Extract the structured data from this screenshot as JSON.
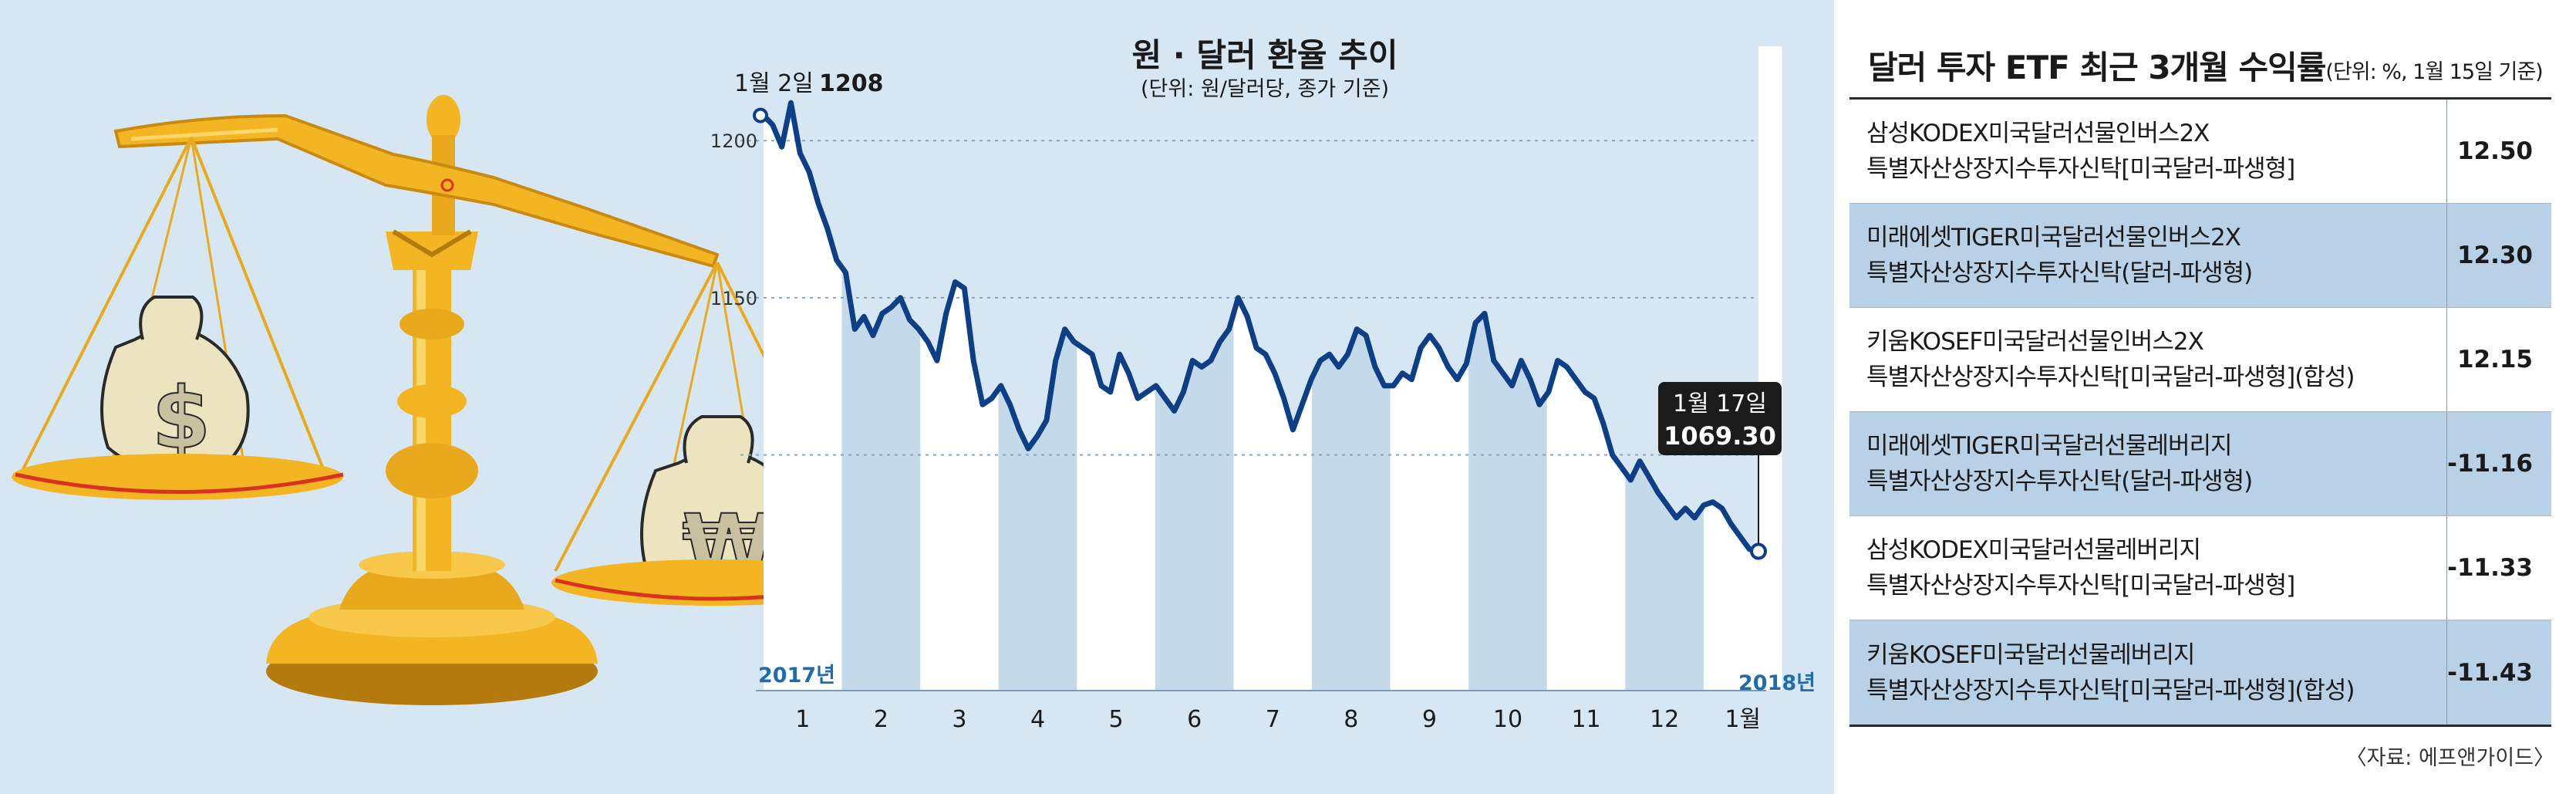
{
  "chart": {
    "title": "원 · 달러 환율 추이",
    "subtitle": "(단위: 원/달러당, 종가 기준)",
    "start_label_date": "1월 2일",
    "start_label_value": "1208",
    "end_label_date": "1월 17일",
    "end_label_value": "1069.30",
    "year_start": "2017년",
    "year_end": "2018년"
  },
  "chart_data": {
    "type": "line",
    "title": "원 · 달러 환율 추이",
    "subtitle": "(단위: 원/달러당, 종가 기준)",
    "ylabel": "",
    "xlabel": "",
    "x_ticks": [
      "1",
      "2",
      "3",
      "4",
      "5",
      "6",
      "7",
      "8",
      "9",
      "10",
      "11",
      "12",
      "1월"
    ],
    "y_ticks": [
      1200,
      1150
    ],
    "ylim": [
      1025,
      1230
    ],
    "grid": true,
    "series": [
      {
        "values": [
          1208,
          1205,
          1198,
          1212,
          1196,
          1190,
          1180,
          1172,
          1162,
          1158,
          1140,
          1144,
          1138,
          1145,
          1147,
          1150,
          1143,
          1140,
          1136,
          1130,
          1145,
          1155,
          1153,
          1130,
          1116,
          1118,
          1122,
          1116,
          1108,
          1102,
          1106,
          1111,
          1130,
          1140,
          1136,
          1134,
          1132,
          1122,
          1120,
          1132,
          1126,
          1118,
          1120,
          1122,
          1118,
          1114,
          1120,
          1130,
          1128,
          1130,
          1136,
          1140,
          1150,
          1144,
          1134,
          1132,
          1126,
          1118,
          1108,
          1116,
          1124,
          1130,
          1132,
          1128,
          1132,
          1140,
          1138,
          1128,
          1122,
          1122,
          1126,
          1124,
          1134,
          1138,
          1134,
          1128,
          1124,
          1129,
          1142,
          1145,
          1130,
          1126,
          1122,
          1130,
          1124,
          1116,
          1120,
          1130,
          1128,
          1124,
          1120,
          1118,
          1110,
          1100,
          1096,
          1092,
          1098,
          1093,
          1088,
          1084,
          1080,
          1083,
          1080,
          1084,
          1085,
          1083,
          1078,
          1074,
          1070,
          1069.3
        ]
      }
    ],
    "start_point": {
      "x": "2017-01-02",
      "y": 1208
    },
    "end_point": {
      "x": "2018-01-17",
      "y": 1069.3
    }
  },
  "table": {
    "title": "달러 투자 ETF 최근 3개월 수익률",
    "title_unit": "(단위: %, 1월 15일 기준)",
    "rows": [
      {
        "line1": "삼성KODEX미국달러선물인버스2X",
        "line2": "특별자산상장지수투자신탁[미국달러-파생형]",
        "value": "12.50"
      },
      {
        "line1": "미래에셋TIGER미국달러선물인버스2X",
        "line2": "특별자산상장지수투자신탁(달러-파생형)",
        "value": "12.30"
      },
      {
        "line1": "키움KOSEF미국달러선물인버스2X",
        "line2": "특별자산상장지수투자신탁[미국달러-파생형](합성)",
        "value": "12.15"
      },
      {
        "line1": "미래에셋TIGER미국달러선물레버리지",
        "line2": "특별자산상장지수투자신탁(달러-파생형)",
        "value": "-11.16"
      },
      {
        "line1": "삼성KODEX미국달러선물레버리지",
        "line2": "특별자산상장지수투자신탁[미국달러-파생형]",
        "value": "-11.33"
      },
      {
        "line1": "키움KOSEF미국달러선물레버리지",
        "line2": "특별자산상장지수투자신탁[미국달러-파생형](합성)",
        "value": "-11.43"
      }
    ],
    "source": "〈자료: 에프앤가이드〉"
  },
  "colors": {
    "panel_bg": "#d6e7f3",
    "line": "#0d3f86",
    "stripe_white": "#ffffff",
    "stripe_blue": "#c4d9ea",
    "row_shade": "#b9d1e7",
    "gold": "#f3b622",
    "gold_dark": "#c98a10",
    "callout_bg": "#1b1b1b"
  },
  "illustration": {
    "name": "balance-scale",
    "bag_left_symbol": "$",
    "bag_right_symbol": "₩"
  }
}
